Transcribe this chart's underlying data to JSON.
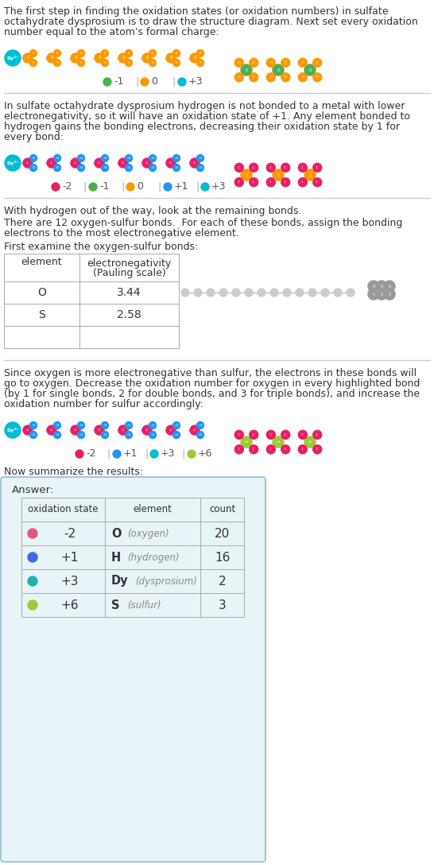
{
  "title_lines": [
    "The first step in finding the oxidation states (or oxidation numbers) in sulfate",
    "octahydrate dysprosium is to draw the structure diagram. Next set every oxidation",
    "number equal to the atom's formal charge:"
  ],
  "section2_lines": [
    "In sulfate octahydrate dysprosium hydrogen is not bonded to a metal with lower",
    "electronegativity, so it will have an oxidation state of +1. Any element bonded to",
    "hydrogen gains the bonding electrons, decreasing their oxidation state by 1 for",
    "every bond:"
  ],
  "section3_line1": "With hydrogen out of the way, look at the remaining bonds.",
  "section3_line2": "There are 12 oxygen-sulfur bonds.  For each of these bonds, assign the bonding",
  "section3_line3": "electrons to the most electronegative element.",
  "section4_text": "First examine the oxygen-sulfur bonds:",
  "section5_lines": [
    "Since oxygen is more electronegative than sulfur, the electrons in these bonds will",
    "go to oxygen. Decrease the oxidation number for oxygen in every highlighted bond",
    "(by 1 for single bonds, 2 for double bonds, and 3 for triple bonds), and increase the",
    "oxidation number for sulfur accordingly:"
  ],
  "section6_text": "Now summarize the results:",
  "answer_label": "Answer:",
  "answer_headers": [
    "oxidation state",
    "element",
    "count"
  ],
  "answer_data": [
    [
      "-2",
      "O",
      "oxygen",
      "20",
      "#e75480"
    ],
    [
      "+1",
      "H",
      "hydrogen",
      "16",
      "#4169e1"
    ],
    [
      "+3",
      "Dy",
      "dysprosium",
      "2",
      "#20b2aa"
    ],
    [
      "+6",
      "S",
      "sulfur",
      "3",
      "#9acd32"
    ]
  ],
  "legend1": [
    {
      "label": "-1",
      "color": "#4caf50"
    },
    {
      "label": "0",
      "color": "#ff9800"
    },
    {
      "label": "+3",
      "color": "#00bcd4"
    }
  ],
  "legend2": [
    {
      "label": "-2",
      "color": "#e91e63"
    },
    {
      "label": "-1",
      "color": "#4caf50"
    },
    {
      "label": "0",
      "color": "#ff9800"
    },
    {
      "label": "+1",
      "color": "#2196f3"
    },
    {
      "label": "+3",
      "color": "#00bcd4"
    }
  ],
  "legend3": [
    {
      "label": "-2",
      "color": "#e91e63"
    },
    {
      "label": "+1",
      "color": "#2196f3"
    },
    {
      "label": "+3",
      "color": "#00bcd4"
    },
    {
      "label": "+6",
      "color": "#9acd32"
    }
  ],
  "dy_color": "#00bcd4",
  "o_init_color": "#ff9800",
  "o2_color": "#e91e63",
  "h_color": "#2196f3",
  "s_init_color": "#4caf50",
  "s_final_color": "#9acd32",
  "bg_color": "#ffffff",
  "text_color": "#333333",
  "box_bg": "#e8f4f8",
  "box_border": "#a0c8d8",
  "sep_color": "#cccccc",
  "table_border_color": "#aaaaaa"
}
